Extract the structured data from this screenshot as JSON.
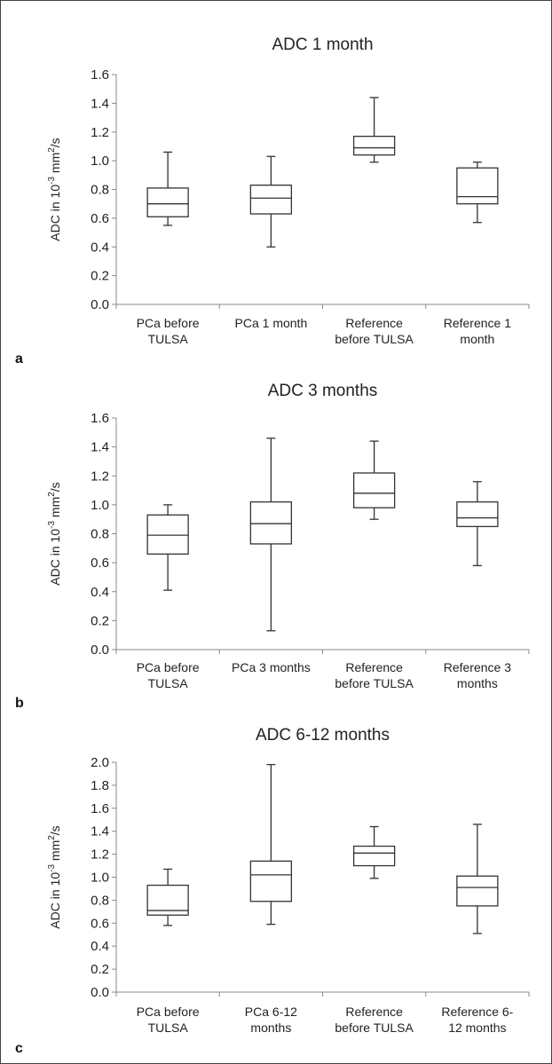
{
  "chart_data": [
    {
      "type": "box",
      "panel": "a",
      "title": "ADC 1 month",
      "ylabel": "ADC in 10-3 mm2/s",
      "ylim": [
        0,
        1.6
      ],
      "yticks": [
        "0.0",
        "0.2",
        "0.4",
        "0.6",
        "0.8",
        "1.0",
        "1.2",
        "1.4",
        "1.6"
      ],
      "categories": [
        [
          "PCa before",
          "TULSA"
        ],
        [
          "PCa 1 month"
        ],
        [
          "Reference",
          "before TULSA"
        ],
        [
          "Reference 1",
          "month"
        ]
      ],
      "boxes": [
        {
          "min": 0.55,
          "q1": 0.61,
          "median": 0.7,
          "q3": 0.81,
          "max": 1.06
        },
        {
          "min": 0.4,
          "q1": 0.63,
          "median": 0.74,
          "q3": 0.83,
          "max": 1.03
        },
        {
          "min": 0.99,
          "q1": 1.04,
          "median": 1.09,
          "q3": 1.17,
          "max": 1.44
        },
        {
          "min": 0.57,
          "q1": 0.7,
          "median": 0.75,
          "q3": 0.95,
          "max": 0.99
        }
      ]
    },
    {
      "type": "box",
      "panel": "b",
      "title": "ADC 3 months",
      "ylabel": "ADC in 10-3 mm2/s",
      "ylim": [
        0,
        1.6
      ],
      "yticks": [
        "0.0",
        "0.2",
        "0.4",
        "0.6",
        "0.8",
        "1.0",
        "1.2",
        "1.4",
        "1.6"
      ],
      "categories": [
        [
          "PCa before",
          "TULSA"
        ],
        [
          "PCa 3 months"
        ],
        [
          "Reference",
          "before TULSA"
        ],
        [
          "Reference 3",
          "months"
        ]
      ],
      "boxes": [
        {
          "min": 0.41,
          "q1": 0.66,
          "median": 0.79,
          "q3": 0.93,
          "max": 1.0
        },
        {
          "min": 0.13,
          "q1": 0.73,
          "median": 0.87,
          "q3": 1.02,
          "max": 1.46
        },
        {
          "min": 0.9,
          "q1": 0.98,
          "median": 1.08,
          "q3": 1.22,
          "max": 1.44
        },
        {
          "min": 0.58,
          "q1": 0.85,
          "median": 0.91,
          "q3": 1.02,
          "max": 1.16
        }
      ]
    },
    {
      "type": "box",
      "panel": "c",
      "title": "ADC 6-12 months",
      "ylabel": "ADC in 10-3 mm2/s",
      "ylim": [
        0,
        2.0
      ],
      "yticks": [
        "0.0",
        "0.2",
        "0.4",
        "0.6",
        "0.8",
        "1.0",
        "1.2",
        "1.4",
        "1.6",
        "1.8",
        "2.0"
      ],
      "categories": [
        [
          "PCa before",
          "TULSA"
        ],
        [
          "PCa 6-12",
          "months"
        ],
        [
          "Reference",
          "before TULSA"
        ],
        [
          "Reference 6-",
          "12 months"
        ]
      ],
      "boxes": [
        {
          "min": 0.58,
          "q1": 0.67,
          "median": 0.71,
          "q3": 0.93,
          "max": 1.07
        },
        {
          "min": 0.59,
          "q1": 0.79,
          "median": 1.02,
          "q3": 1.14,
          "max": 1.98
        },
        {
          "min": 0.99,
          "q1": 1.1,
          "median": 1.21,
          "q3": 1.27,
          "max": 1.44
        },
        {
          "min": 0.51,
          "q1": 0.75,
          "median": 0.91,
          "q3": 1.01,
          "max": 1.46
        }
      ]
    }
  ]
}
